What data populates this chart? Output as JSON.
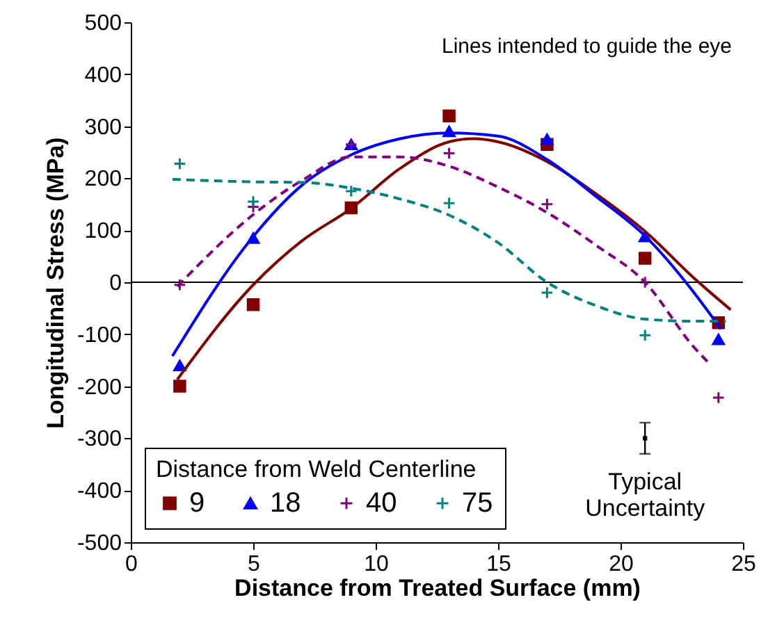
{
  "chart_data": {
    "type": "scatter",
    "xlabel": "Distance from Treated Surface (mm)",
    "ylabel": "Longitudinal Stress (MPa)",
    "legend_title": "Distance from Weld Centerline",
    "legend": "bottom left",
    "grid": false,
    "xlim": [
      0,
      25
    ],
    "xticks": [
      0,
      5,
      10,
      15,
      20,
      25
    ],
    "ylim": [
      -500,
      500
    ],
    "yticks": [
      -500,
      -400,
      -300,
      -200,
      -100,
      0,
      100,
      200,
      300,
      400,
      500
    ],
    "annotations": [
      "Lines intended to guide the eye",
      {
        "text": "Typical Uncertainty",
        "x": 21,
        "y": -300
      }
    ],
    "ref_lines": [
      {
        "axis": "y",
        "value": 0,
        "color": "#000000"
      }
    ],
    "series": [
      {
        "name": "9",
        "color": "#800000",
        "marker": "square",
        "x": [
          2,
          5,
          9,
          13,
          17,
          21,
          24
        ],
        "values": [
          -200,
          -43,
          143,
          320,
          265,
          46,
          -78
        ]
      },
      {
        "name": "18",
        "color": "#0000ff",
        "marker": "triangle",
        "x": [
          2,
          5,
          9,
          13,
          17,
          21,
          24
        ],
        "values": [
          -160,
          85,
          265,
          290,
          275,
          88,
          -110
        ]
      },
      {
        "name": "40",
        "color": "#800080",
        "marker": "cross",
        "x": [
          2,
          5,
          9,
          13,
          17,
          21,
          24
        ],
        "values": [
          -5,
          145,
          265,
          248,
          150,
          0,
          -222
        ]
      },
      {
        "name": "75",
        "color": "#008080",
        "marker": "cross",
        "x": [
          2,
          5,
          9,
          13,
          17,
          21
        ],
        "values": [
          228,
          155,
          175,
          152,
          -20,
          -102
        ]
      },
      {
        "type": "line",
        "color": "#800000",
        "line_style": "solid",
        "x": [
          1.9,
          5,
          7,
          9,
          11,
          13,
          14,
          15,
          17,
          19,
          21,
          23,
          24.5
        ],
        "values": [
          -187,
          -5,
          80,
          142,
          219,
          270,
          276,
          270,
          232,
          170,
          98,
          8,
          -53
        ]
      },
      {
        "type": "line",
        "color": "#0000ff",
        "line_style": "solid",
        "x": [
          1.7,
          5,
          7,
          9,
          11,
          13,
          15,
          17,
          19,
          21,
          23,
          24.1
        ],
        "values": [
          -142,
          88,
          187,
          245,
          276,
          287,
          281,
          236,
          165,
          89,
          -20,
          -90
        ]
      },
      {
        "type": "line",
        "color": "#800080",
        "line_style": "dashed",
        "x": [
          1.9,
          5,
          7,
          9,
          11,
          13,
          15,
          17,
          19,
          21,
          23,
          23.6
        ],
        "values": [
          -8,
          130,
          196,
          241,
          241,
          223,
          183,
          134,
          71,
          0,
          -125,
          -155
        ]
      },
      {
        "type": "line",
        "color": "#008080",
        "line_style": "dashed",
        "x": [
          1.7,
          5,
          7,
          9,
          11,
          13,
          15,
          17,
          19,
          21,
          23,
          24.3
        ],
        "values": [
          198,
          193,
          192,
          181,
          160,
          129,
          76,
          0,
          -45,
          -71,
          -75,
          -75
        ]
      },
      {
        "color": "#000000",
        "marker": "square",
        "x": [
          21
        ],
        "values": [
          -300
        ],
        "errors": [
          30
        ]
      }
    ]
  }
}
